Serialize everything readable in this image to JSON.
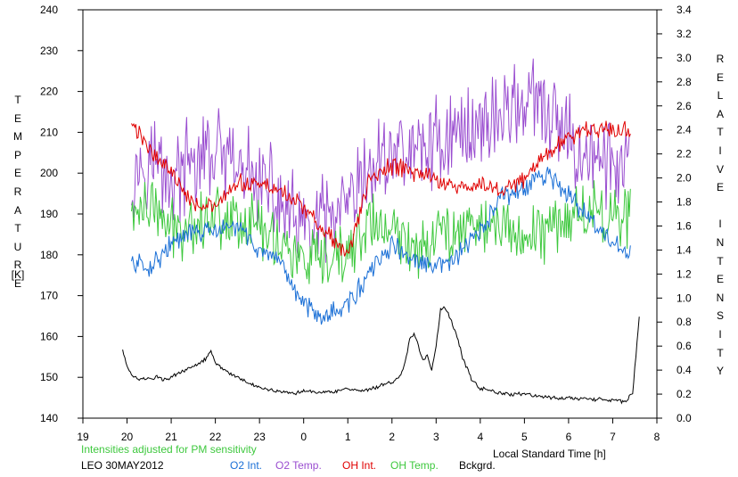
{
  "chart_data": {
    "type": "line",
    "title": "",
    "note": "Intensities adjusted for PM sensitivity",
    "station_date": "LEO 30MAY2012",
    "xlabel": "Local Standard Time [h]",
    "ylabel_left": "TEMPERATURE",
    "ylabel_left_unit": "[K]",
    "ylabel_right": "RELATIVE INTENSITY",
    "x_ticks": [
      "19",
      "20",
      "21",
      "22",
      "23",
      "0",
      "1",
      "2",
      "3",
      "4",
      "5",
      "6",
      "7",
      "8"
    ],
    "left_ticks": [
      "140",
      "150",
      "160",
      "170",
      "180",
      "190",
      "200",
      "210",
      "220",
      "230",
      "240"
    ],
    "right_ticks": [
      "0.0",
      "0.2",
      "0.4",
      "0.6",
      "0.8",
      "1.0",
      "1.2",
      "1.4",
      "1.6",
      "1.8",
      "2.0",
      "2.2",
      "2.4",
      "2.6",
      "2.8",
      "3.0",
      "3.2",
      "3.4"
    ],
    "ylim_left": [
      140,
      240
    ],
    "ylim_right": [
      0.0,
      3.4
    ],
    "x_unit_note": "hours elapsed from 19 LST (x=5 corresponds to 0 LST)",
    "xlim": [
      0,
      13
    ],
    "series": [
      {
        "name": "O2 Int.",
        "axis": "right",
        "color": "#1a6fd6",
        "x": [
          1.1,
          1.5,
          2.0,
          2.5,
          3.0,
          3.5,
          4.0,
          4.5,
          5.0,
          5.5,
          6.0,
          6.5,
          7.0,
          7.5,
          8.0,
          8.5,
          9.0,
          9.5,
          10.0,
          10.5,
          11.0,
          11.5,
          12.0,
          12.4
        ],
        "y": [
          1.3,
          1.25,
          1.45,
          1.55,
          1.55,
          1.6,
          1.4,
          1.25,
          0.95,
          0.85,
          0.95,
          1.2,
          1.45,
          1.3,
          1.25,
          1.35,
          1.55,
          1.85,
          1.9,
          2.05,
          1.85,
          1.65,
          1.45,
          1.35
        ]
      },
      {
        "name": "O2 Temp.",
        "axis": "left",
        "color": "#9a4ed0",
        "x": [
          1.1,
          1.5,
          2.0,
          2.5,
          3.0,
          3.5,
          4.0,
          4.5,
          5.0,
          5.5,
          6.0,
          6.5,
          7.0,
          7.5,
          8.0,
          8.5,
          9.0,
          9.5,
          10.0,
          10.5,
          11.0,
          11.5,
          12.0,
          12.4
        ],
        "y": [
          200,
          205,
          198,
          202,
          205,
          200,
          198,
          192,
          185,
          188,
          190,
          200,
          206,
          205,
          208,
          210,
          212,
          215,
          218,
          214,
          208,
          204,
          202,
          202
        ]
      },
      {
        "name": "OH Int.",
        "axis": "right",
        "color": "#e00000",
        "x": [
          1.1,
          1.5,
          2.0,
          2.5,
          3.0,
          3.5,
          4.0,
          4.5,
          5.0,
          5.5,
          6.0,
          6.5,
          7.0,
          7.5,
          8.0,
          8.5,
          9.0,
          9.5,
          10.0,
          10.5,
          11.0,
          11.5,
          12.0,
          12.4
        ],
        "y": [
          2.45,
          2.25,
          2.05,
          1.8,
          1.75,
          1.95,
          1.95,
          1.9,
          1.75,
          1.55,
          1.35,
          2.0,
          2.1,
          2.05,
          2.0,
          1.9,
          1.95,
          1.9,
          2.0,
          2.2,
          2.35,
          2.4,
          2.4,
          2.4
        ]
      },
      {
        "name": "OH Temp.",
        "axis": "left",
        "color": "#3ec83e",
        "x": [
          1.1,
          1.5,
          2.0,
          2.5,
          3.0,
          3.5,
          4.0,
          4.5,
          5.0,
          5.5,
          6.0,
          6.5,
          7.0,
          7.5,
          8.0,
          8.5,
          9.0,
          9.5,
          10.0,
          10.5,
          11.0,
          11.5,
          12.0,
          12.4
        ],
        "y": [
          190,
          192,
          186,
          188,
          190,
          189,
          187,
          183,
          178,
          177,
          180,
          188,
          185,
          182,
          185,
          187,
          188,
          186,
          185,
          186,
          190,
          191,
          190,
          190
        ]
      },
      {
        "name": "Bckgrd.",
        "axis": "right",
        "color": "#000000",
        "x": [
          0.9,
          1.0,
          1.1,
          1.3,
          1.5,
          1.6,
          1.7,
          1.8,
          2.0,
          2.3,
          2.6,
          2.8,
          2.9,
          3.0,
          3.1,
          3.3,
          3.5,
          3.8,
          4.0,
          4.2,
          4.5,
          4.8,
          5.0,
          5.3,
          5.6,
          6.0,
          6.3,
          6.6,
          6.9,
          7.0,
          7.2,
          7.3,
          7.4,
          7.5,
          7.6,
          7.7,
          7.8,
          7.9,
          8.0,
          8.1,
          8.2,
          8.35,
          8.5,
          8.6,
          8.8,
          9.0,
          9.3,
          9.6,
          10.0,
          10.4,
          10.8,
          11.0,
          11.5,
          11.9,
          12.0,
          12.2,
          12.3,
          12.45,
          12.6
        ],
        "y": [
          0.57,
          0.44,
          0.35,
          0.32,
          0.34,
          0.32,
          0.35,
          0.32,
          0.34,
          0.4,
          0.45,
          0.5,
          0.57,
          0.47,
          0.43,
          0.38,
          0.34,
          0.28,
          0.26,
          0.24,
          0.22,
          0.21,
          0.23,
          0.22,
          0.22,
          0.24,
          0.22,
          0.25,
          0.29,
          0.3,
          0.35,
          0.48,
          0.65,
          0.7,
          0.6,
          0.48,
          0.52,
          0.4,
          0.6,
          0.9,
          0.93,
          0.8,
          0.65,
          0.5,
          0.33,
          0.25,
          0.22,
          0.2,
          0.2,
          0.18,
          0.16,
          0.17,
          0.16,
          0.15,
          0.15,
          0.14,
          0.15,
          0.2,
          0.85
        ]
      }
    ]
  },
  "legend": [
    {
      "label": "O2 Int.",
      "color": "#1a6fd6"
    },
    {
      "label": "O2 Temp.",
      "color": "#9a4ed0"
    },
    {
      "label": "OH Int.",
      "color": "#e00000"
    },
    {
      "label": "OH Temp.",
      "color": "#3ec83e"
    },
    {
      "label": "Bckgrd.",
      "color": "#000000"
    }
  ]
}
